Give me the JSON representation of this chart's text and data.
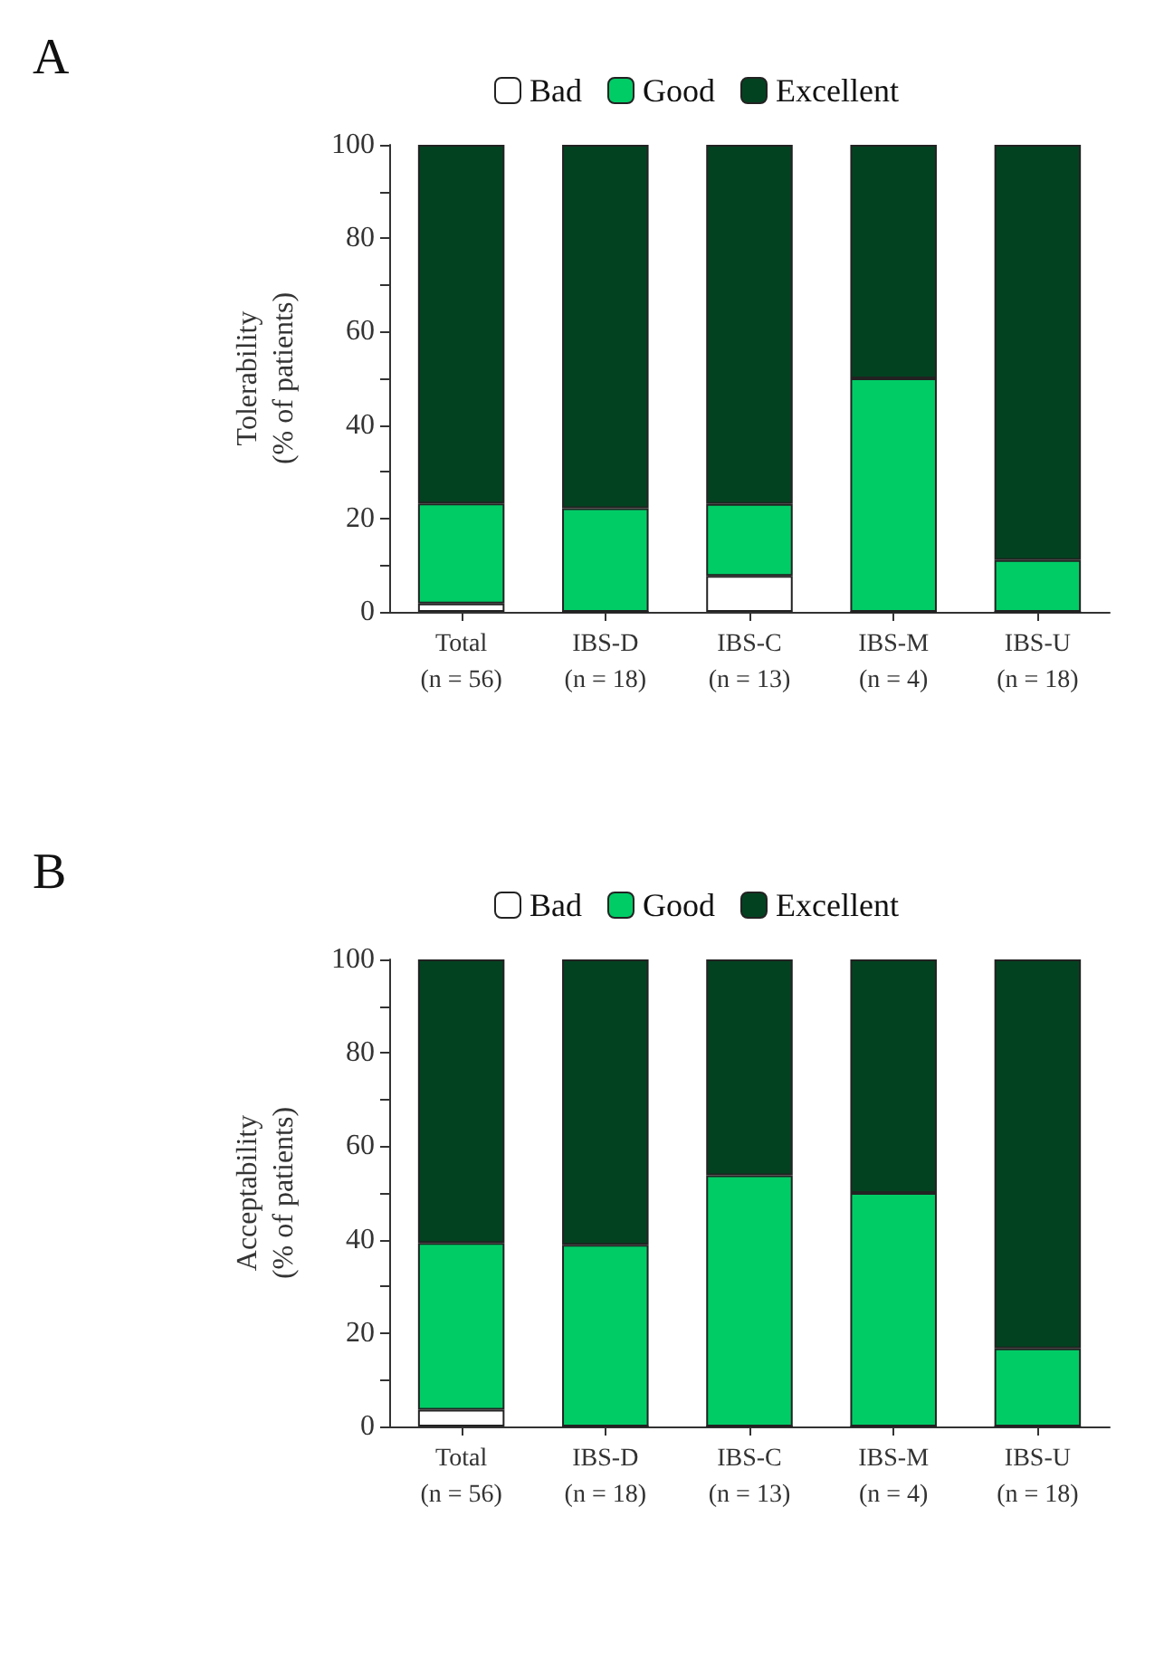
{
  "chart_data": [
    {
      "type": "bar",
      "title": "A",
      "ylabel": "Tolerability\n(% of patients)",
      "stacked": true,
      "legend": "top",
      "grid": false,
      "categories": [
        "Total\n(n = 56)",
        "IBS-D\n(n = 18)",
        "IBS-C\n(n = 13)",
        "IBS-M\n(n = 4)",
        "IBS-U\n(n = 18)"
      ],
      "series": [
        {
          "name": "Bad",
          "color": "#ffffff",
          "values": [
            1.8,
            0,
            7.7,
            0,
            0
          ]
        },
        {
          "name": "Good",
          "color": "#00cc66",
          "values": [
            21.4,
            22.2,
            15.4,
            50,
            11.1
          ]
        },
        {
          "name": "Excellent",
          "color": "#034221",
          "values": [
            76.8,
            77.8,
            76.9,
            50,
            88.9
          ]
        }
      ],
      "ylim": [
        0,
        100
      ],
      "yticks": [
        0,
        {
          "value": 10,
          "label": null
        },
        20,
        {
          "value": 30,
          "label": null
        },
        40,
        {
          "value": 50,
          "label": null
        },
        60,
        {
          "value": 70,
          "label": null
        },
        80,
        {
          "value": 90,
          "label": null
        },
        100
      ]
    },
    {
      "type": "bar",
      "title": "B",
      "ylabel": "Acceptability\n(% of patients)",
      "stacked": true,
      "legend": "top",
      "grid": false,
      "categories": [
        "Total\n(n = 56)",
        "IBS-D\n(n = 18)",
        "IBS-C\n(n = 13)",
        "IBS-M\n(n = 4)",
        "IBS-U\n(n = 18)"
      ],
      "series": [
        {
          "name": "Bad",
          "color": "#ffffff",
          "values": [
            3.6,
            0,
            0,
            0,
            0
          ]
        },
        {
          "name": "Good",
          "color": "#00cc66",
          "values": [
            35.7,
            38.9,
            53.8,
            50,
            16.7
          ]
        },
        {
          "name": "Excellent",
          "color": "#034221",
          "values": [
            60.7,
            61.1,
            46.2,
            50,
            83.3
          ]
        }
      ],
      "ylim": [
        0,
        100
      ],
      "yticks": [
        0,
        {
          "value": 10,
          "label": null
        },
        20,
        {
          "value": 30,
          "label": null
        },
        40,
        {
          "value": 50,
          "label": null
        },
        60,
        {
          "value": 70,
          "label": null
        },
        80,
        {
          "value": 90,
          "label": null
        },
        100
      ]
    }
  ]
}
